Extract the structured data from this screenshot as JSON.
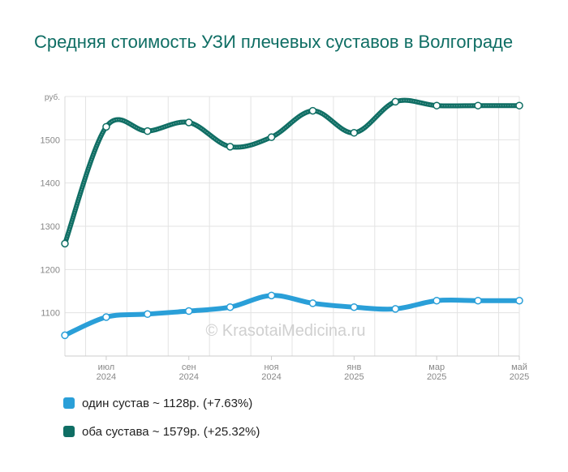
{
  "title": "Средняя стоимость УЗИ плечевых суставов в Волгограде",
  "watermark": "© KrasotaiMedicina.ru",
  "legend": {
    "items": [
      {
        "label": "один сустав ~ 1128р. (+7.63%)",
        "color": "#2a9fd8"
      },
      {
        "label": "оба сустава ~ 1579р. (+25.32%)",
        "color": "#0f6e64"
      }
    ]
  },
  "chart_data": {
    "type": "line",
    "title": "Средняя стоимость УЗИ плечевых суставов в Волгограде",
    "ylabel": "руб.",
    "ylim": [
      1000,
      1600
    ],
    "y_ticks": [
      1100,
      1200,
      1300,
      1400,
      1500
    ],
    "grid": true,
    "legend_position": "bottom-left",
    "x_labels": [
      {
        "month": "июл",
        "year": "2024"
      },
      {
        "month": "сен",
        "year": "2024"
      },
      {
        "month": "ноя",
        "year": "2024"
      },
      {
        "month": "янв",
        "year": "2025"
      },
      {
        "month": "мар",
        "year": "2025"
      },
      {
        "month": "май",
        "year": "2025"
      }
    ],
    "x": [
      "2024-06",
      "2024-07",
      "2024-08",
      "2024-09",
      "2024-10",
      "2024-11",
      "2024-12",
      "2025-01",
      "2025-02",
      "2025-03",
      "2025-04",
      "2025-05"
    ],
    "series": [
      {
        "name": "один сустав ~ 1128р. (+7.63%)",
        "color": "#2a9fd8",
        "values": [
          1048,
          1090,
          1097,
          1104,
          1113,
          1140,
          1122,
          1113,
          1109,
          1128,
          1128,
          1128
        ]
      },
      {
        "name": "оба сустава ~ 1579р. (+25.32%)",
        "color": "#0f6e64",
        "values": [
          1260,
          1530,
          1520,
          1540,
          1484,
          1506,
          1567,
          1516,
          1588,
          1579,
          1579,
          1579
        ]
      }
    ]
  }
}
